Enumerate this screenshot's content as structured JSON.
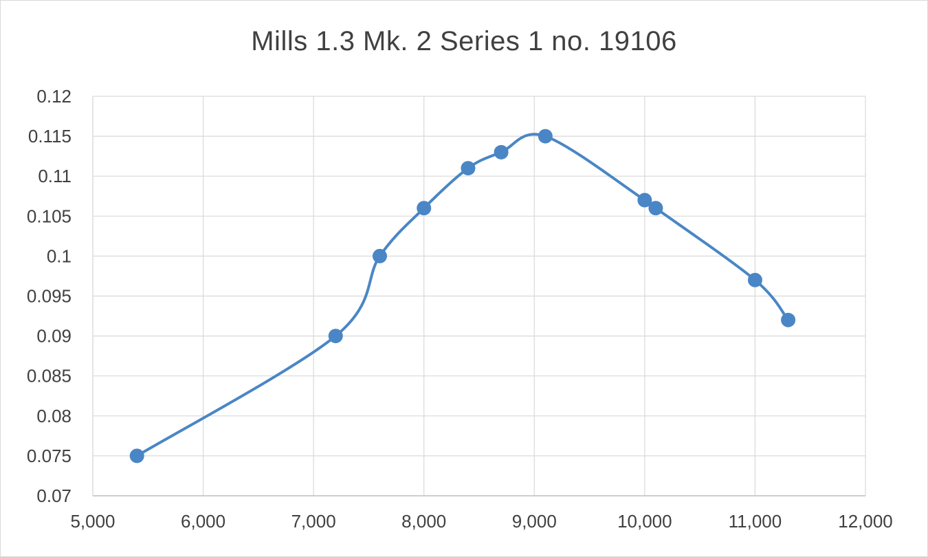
{
  "chart_data": {
    "type": "scatter",
    "title": "Mills 1.3 Mk. 2 Series 1 no. 19106",
    "xlabel": "",
    "ylabel": "",
    "xlim": [
      5000,
      12000
    ],
    "ylim": [
      0.07,
      0.12
    ],
    "x_ticks": [
      5000,
      6000,
      7000,
      8000,
      9000,
      10000,
      11000,
      12000
    ],
    "x_tick_labels": [
      "5,000",
      "6,000",
      "7,000",
      "8,000",
      "9,000",
      "10,000",
      "11,000",
      "12,000"
    ],
    "y_ticks": [
      0.07,
      0.075,
      0.08,
      0.085,
      0.09,
      0.095,
      0.1,
      0.105,
      0.11,
      0.115,
      0.12
    ],
    "y_tick_labels": [
      "0.07",
      "0.075",
      "0.08",
      "0.085",
      "0.09",
      "0.095",
      "0.1",
      "0.105",
      "0.11",
      "0.115",
      "0.12"
    ],
    "grid": true,
    "legend": "none",
    "line_style": "smoothed",
    "series": [
      {
        "color": "#4a86c5",
        "x": [
          5400,
          7200,
          7600,
          8000,
          8400,
          8700,
          9100,
          10000,
          10100,
          11000,
          11300
        ],
        "y": [
          0.075,
          0.09,
          0.1,
          0.106,
          0.111,
          0.113,
          0.115,
          0.107,
          0.106,
          0.097,
          0.092
        ]
      }
    ]
  }
}
